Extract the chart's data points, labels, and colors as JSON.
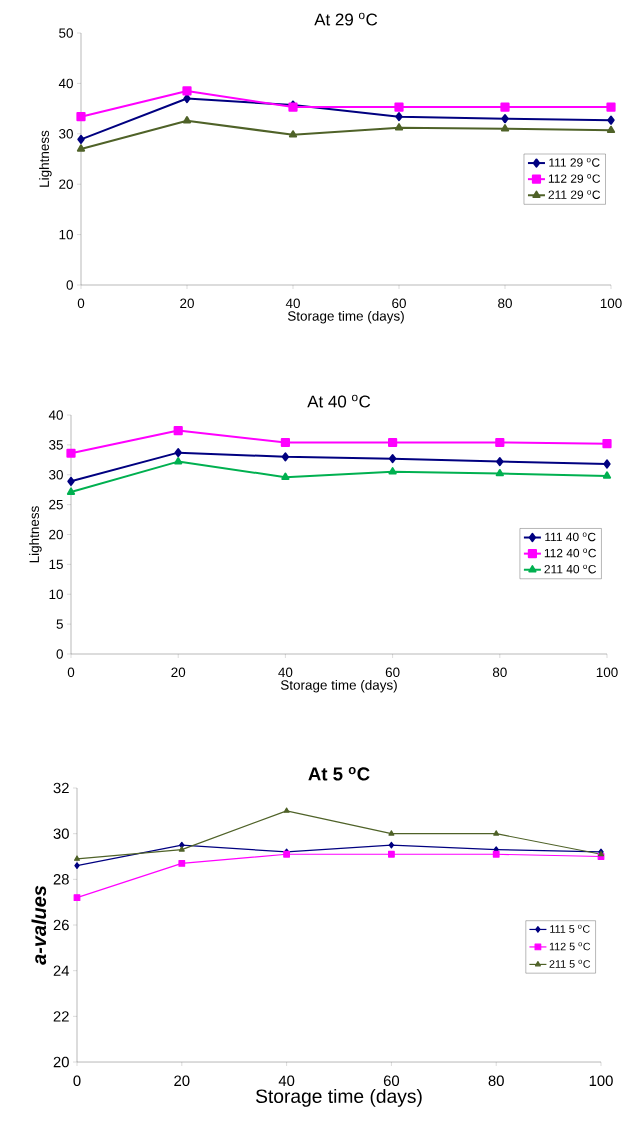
{
  "chart_data": [
    {
      "type": "line",
      "title": "At 29 $^{o}$C",
      "xlabel": "Storage time (days)",
      "ylabel": "Lightness",
      "x": [
        0,
        20,
        40,
        60,
        80,
        100
      ],
      "xlim": [
        0,
        100
      ],
      "xticks": [
        0,
        20,
        40,
        60,
        80,
        100
      ],
      "ylim": [
        0,
        50
      ],
      "yticks": [
        0,
        10,
        20,
        30,
        40,
        50
      ],
      "legend": "right",
      "grid": false,
      "series": [
        {
          "name": "111 29 $^{o}$C",
          "color": "#000080",
          "marker": "diamond",
          "values": [
            28.9,
            37.0,
            35.7,
            33.4,
            33.0,
            32.7
          ]
        },
        {
          "name": "112 29 $^{o}$C",
          "color": "#ff00ff",
          "marker": "square",
          "values": [
            33.4,
            38.5,
            35.3,
            35.3,
            35.3,
            35.3
          ]
        },
        {
          "name": "211 29 $^{o}$C",
          "color": "#4f6228",
          "marker": "triangle",
          "values": [
            27.0,
            32.6,
            29.8,
            31.2,
            31.0,
            30.7
          ]
        }
      ]
    },
    {
      "type": "line",
      "title": "At 40 $^{o}$C",
      "xlabel": "Storage time (days)",
      "ylabel": "Lightness",
      "x": [
        0,
        20,
        40,
        60,
        80,
        100
      ],
      "xlim": [
        0,
        100
      ],
      "xticks": [
        0,
        20,
        40,
        60,
        80,
        100
      ],
      "ylim": [
        0,
        40
      ],
      "yticks": [
        0,
        5,
        10,
        15,
        20,
        25,
        30,
        35,
        40
      ],
      "legend": "right",
      "grid": false,
      "series": [
        {
          "name": "111 40 $^{o}$C",
          "color": "#000080",
          "marker": "diamond",
          "values": [
            28.9,
            33.7,
            33.0,
            32.7,
            32.2,
            31.8
          ]
        },
        {
          "name": "112 40 $^{o}$C",
          "color": "#ff00ff",
          "marker": "square",
          "values": [
            33.6,
            37.4,
            35.4,
            35.4,
            35.4,
            35.2
          ]
        },
        {
          "name": "211 40 $^{o}$C",
          "color": "#00b050",
          "marker": "triangle",
          "values": [
            27.1,
            32.2,
            29.6,
            30.5,
            30.2,
            29.8
          ]
        }
      ]
    },
    {
      "type": "line",
      "title": "At 5 $^{o}$C",
      "xlabel": "Storage time (days)",
      "ylabel": "a-values",
      "x": [
        0,
        20,
        40,
        60,
        80,
        100
      ],
      "xlim": [
        0,
        100
      ],
      "xticks": [
        0,
        20,
        40,
        60,
        80,
        100
      ],
      "ylim": [
        20,
        32
      ],
      "yticks": [
        20,
        22,
        24,
        26,
        28,
        30,
        32
      ],
      "legend": "right",
      "grid": false,
      "series": [
        {
          "name": "111 5  $^{o}$C",
          "color": "#000080",
          "marker": "diamond",
          "values": [
            28.6,
            29.5,
            29.2,
            29.5,
            29.3,
            29.2
          ]
        },
        {
          "name": "112 5  $^{o}$C",
          "color": "#ff00ff",
          "marker": "square",
          "values": [
            27.2,
            28.7,
            29.1,
            29.1,
            29.1,
            29.0
          ]
        },
        {
          "name": "211 5  $^{o}$C",
          "color": "#4f6228",
          "marker": "triangle",
          "values": [
            28.9,
            29.3,
            31.0,
            30.0,
            30.0,
            29.1
          ]
        }
      ]
    }
  ]
}
